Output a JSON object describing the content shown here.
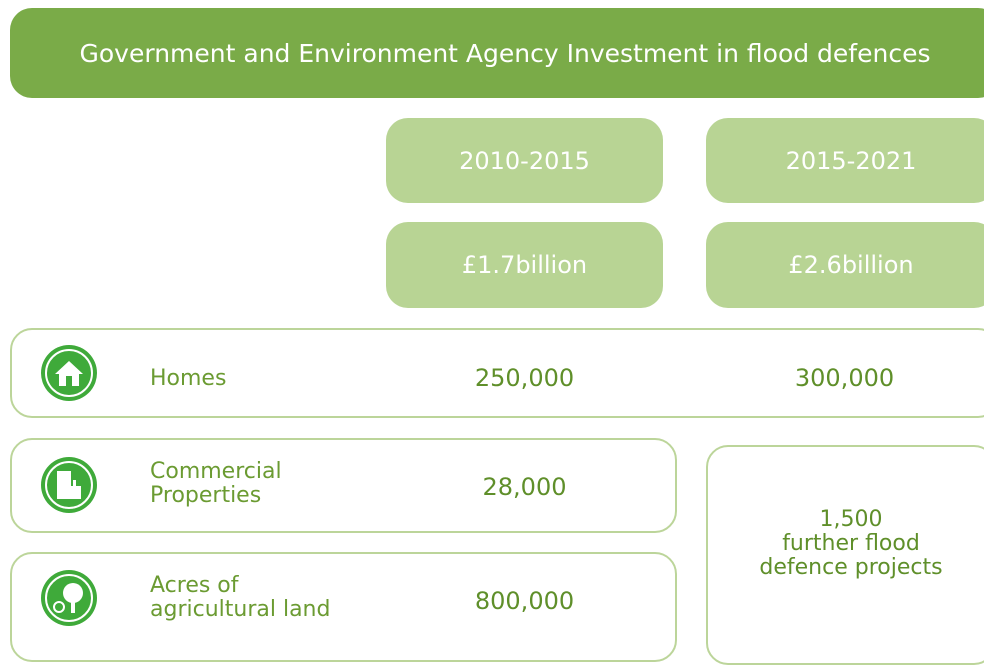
{
  "header": {
    "title": "Government and Environment Agency Investment in flood defences"
  },
  "periods": [
    {
      "label": "2010-2015",
      "investment": "£1.7billion"
    },
    {
      "label": "2015-2021",
      "investment": "£2.6billion"
    }
  ],
  "rows": [
    {
      "label": "Homes",
      "values": [
        "250,000",
        "300,000"
      ]
    },
    {
      "label": "Commercial Properties",
      "values": [
        "28,000"
      ]
    },
    {
      "label": "Acres of agricultural land",
      "values": [
        "800,000"
      ]
    }
  ],
  "note": {
    "value": "1,500",
    "text": "further flood defence projects"
  }
}
